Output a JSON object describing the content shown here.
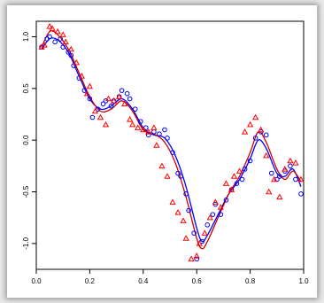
{
  "chart_data": {
    "type": "scatter",
    "title": "",
    "xlabel": "",
    "ylabel": "",
    "xlim": [
      0.0,
      1.0
    ],
    "ylim": [
      -1.25,
      1.15
    ],
    "x_ticks": [
      "0.0",
      "0.2",
      "0.4",
      "0.6",
      "0.8",
      "1.0"
    ],
    "y_ticks": [
      "-1.0",
      "-0.5",
      "0.0",
      "0.5",
      "1.0"
    ],
    "grid": false,
    "legend": "none",
    "series": [
      {
        "marker": "circle",
        "color": "#0000ff",
        "x": [
          0.02,
          0.04,
          0.05,
          0.07,
          0.09,
          0.1,
          0.12,
          0.13,
          0.14,
          0.16,
          0.18,
          0.2,
          0.21,
          0.23,
          0.25,
          0.26,
          0.28,
          0.29,
          0.31,
          0.32,
          0.34,
          0.35,
          0.37,
          0.39,
          0.41,
          0.42,
          0.44,
          0.46,
          0.48,
          0.49,
          0.51,
          0.53,
          0.54,
          0.56,
          0.57,
          0.59,
          0.6,
          0.62,
          0.64,
          0.66,
          0.67,
          0.69,
          0.71,
          0.73,
          0.75,
          0.77,
          0.78,
          0.8,
          0.82,
          0.84,
          0.86,
          0.88,
          0.9,
          0.91,
          0.93,
          0.95,
          0.97,
          0.99
        ],
        "y": [
          0.9,
          0.98,
          1.0,
          0.95,
          0.98,
          0.9,
          0.85,
          0.82,
          0.72,
          0.6,
          0.48,
          0.4,
          0.22,
          0.3,
          0.35,
          0.38,
          0.33,
          0.38,
          0.42,
          0.48,
          0.45,
          0.4,
          0.3,
          0.18,
          0.12,
          0.05,
          0.08,
          0.06,
          0.1,
          0.02,
          -0.12,
          -0.32,
          -0.35,
          -0.52,
          -0.68,
          -0.9,
          -1.15,
          -0.98,
          -0.82,
          -0.72,
          -0.62,
          -0.72,
          -0.58,
          -0.48,
          -0.42,
          -0.38,
          -0.28,
          -0.2,
          0.02,
          0.08,
          0.05,
          -0.32,
          -0.38,
          -0.35,
          -0.3,
          -0.25,
          -0.38,
          -0.52
        ]
      },
      {
        "marker": "triangle",
        "color": "#ff0000",
        "x": [
          0.02,
          0.03,
          0.05,
          0.06,
          0.08,
          0.1,
          0.11,
          0.13,
          0.15,
          0.17,
          0.19,
          0.2,
          0.22,
          0.24,
          0.26,
          0.27,
          0.29,
          0.31,
          0.33,
          0.35,
          0.36,
          0.38,
          0.4,
          0.42,
          0.44,
          0.45,
          0.47,
          0.49,
          0.51,
          0.53,
          0.55,
          0.56,
          0.58,
          0.6,
          0.61,
          0.63,
          0.65,
          0.67,
          0.69,
          0.71,
          0.73,
          0.74,
          0.76,
          0.78,
          0.8,
          0.82,
          0.84,
          0.86,
          0.87,
          0.89,
          0.91,
          0.93,
          0.95,
          0.97,
          0.99
        ],
        "y": [
          0.9,
          0.92,
          1.1,
          1.08,
          1.05,
          1.02,
          0.95,
          0.88,
          0.75,
          0.62,
          0.45,
          0.52,
          0.28,
          0.22,
          0.15,
          0.4,
          0.38,
          0.42,
          0.35,
          0.2,
          0.15,
          0.12,
          0.1,
          0.08,
          0.12,
          -0.05,
          -0.25,
          -0.35,
          -0.6,
          -0.7,
          -0.78,
          -0.95,
          -1.15,
          -1.12,
          -1.0,
          -0.9,
          -0.75,
          -0.6,
          -0.65,
          -0.42,
          -0.48,
          -0.35,
          -0.3,
          0.08,
          0.15,
          0.22,
          0.1,
          -0.15,
          -0.5,
          -0.38,
          -0.55,
          -0.28,
          -0.2,
          -0.22,
          -0.38
        ]
      }
    ],
    "curves": [
      {
        "color": "#0000ff",
        "x": [
          0.02,
          0.05,
          0.08,
          0.12,
          0.16,
          0.2,
          0.24,
          0.28,
          0.32,
          0.36,
          0.4,
          0.44,
          0.48,
          0.52,
          0.56,
          0.6,
          0.62,
          0.64,
          0.68,
          0.72,
          0.76,
          0.8,
          0.83,
          0.86,
          0.9,
          0.93,
          0.96,
          0.99
        ],
        "y": [
          0.88,
          0.98,
          0.97,
          0.85,
          0.62,
          0.4,
          0.3,
          0.33,
          0.4,
          0.3,
          0.12,
          0.05,
          0.02,
          -0.15,
          -0.45,
          -0.85,
          -0.98,
          -0.92,
          -0.72,
          -0.52,
          -0.38,
          -0.18,
          0.0,
          -0.08,
          -0.32,
          -0.35,
          -0.28,
          -0.45
        ]
      },
      {
        "color": "#cc0000",
        "x": [
          0.02,
          0.05,
          0.08,
          0.12,
          0.16,
          0.2,
          0.24,
          0.28,
          0.32,
          0.36,
          0.4,
          0.44,
          0.48,
          0.52,
          0.56,
          0.6,
          0.62,
          0.64,
          0.68,
          0.72,
          0.76,
          0.8,
          0.83,
          0.86,
          0.9,
          0.93,
          0.96,
          0.99
        ],
        "y": [
          0.9,
          1.05,
          1.02,
          0.88,
          0.65,
          0.42,
          0.28,
          0.3,
          0.38,
          0.28,
          0.1,
          0.06,
          -0.02,
          -0.22,
          -0.55,
          -0.95,
          -1.05,
          -0.98,
          -0.75,
          -0.52,
          -0.35,
          -0.12,
          0.08,
          -0.02,
          -0.28,
          -0.38,
          -0.3,
          -0.4
        ]
      }
    ]
  }
}
